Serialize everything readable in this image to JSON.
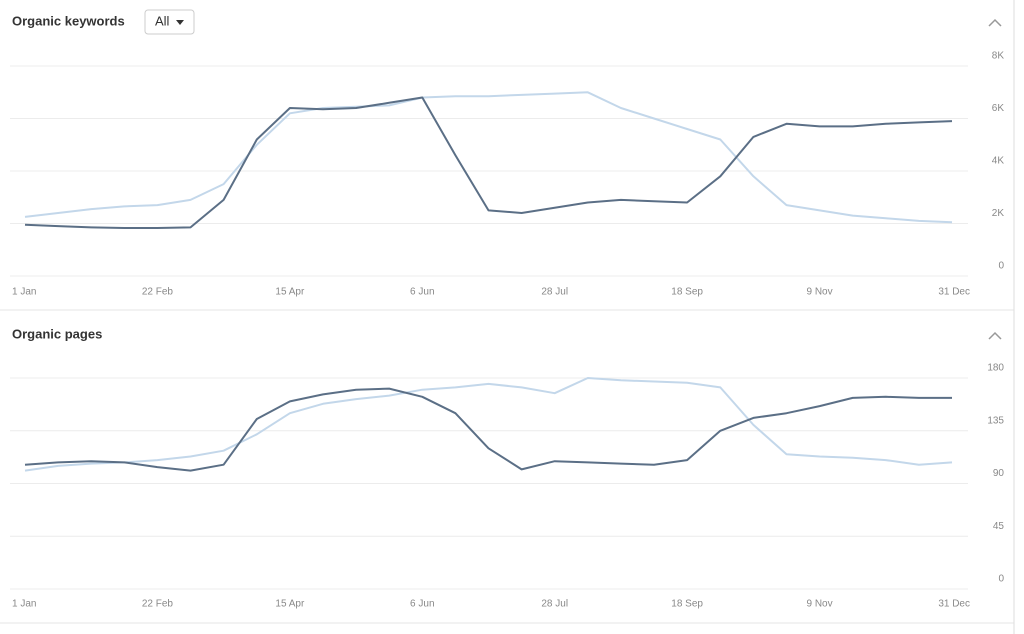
{
  "filter": "All",
  "chart_data": [
    {
      "type": "line",
      "title": "Organic keywords",
      "categories": [
        "1 Jan",
        null,
        null,
        null,
        "22 Feb",
        null,
        null,
        null,
        "15 Apr",
        null,
        null,
        null,
        "6 Jun",
        null,
        null,
        null,
        "28 Jul",
        null,
        null,
        null,
        "18 Sep",
        null,
        null,
        null,
        "9 Nov",
        null,
        null,
        null,
        "31 Dec"
      ],
      "ylim": [
        0,
        8000
      ],
      "yticks": [
        0,
        {
          "value": 2000,
          "label": "2K"
        },
        {
          "value": 4000,
          "label": "4K"
        },
        {
          "value": 6000,
          "label": "6K"
        },
        {
          "value": 8000,
          "label": "8K"
        }
      ],
      "grid": true,
      "series": [
        {
          "color": "#c3d7ea",
          "values": [
            2250,
            2400,
            2550,
            2650,
            2700,
            2900,
            3500,
            5000,
            6200,
            6400,
            6450,
            6500,
            6800,
            6850,
            6850,
            6900,
            6950,
            7000,
            6400,
            6000,
            5600,
            5200,
            3800,
            2700,
            2500,
            2300,
            2200,
            2100,
            2050
          ]
        },
        {
          "color": "#5b6f86",
          "values": [
            1950,
            1900,
            1850,
            1830,
            1830,
            1850,
            2900,
            5200,
            6400,
            6350,
            6400,
            6600,
            6800,
            4600,
            2500,
            2400,
            2600,
            2800,
            2900,
            2850,
            2800,
            3800,
            5300,
            5800,
            5700,
            5700,
            5800,
            5850,
            5900
          ]
        }
      ]
    },
    {
      "type": "line",
      "title": "Organic pages",
      "categories": [
        "1 Jan",
        null,
        null,
        null,
        "22 Feb",
        null,
        null,
        null,
        "15 Apr",
        null,
        null,
        null,
        "6 Jun",
        null,
        null,
        null,
        "28 Jul",
        null,
        null,
        null,
        "18 Sep",
        null,
        null,
        null,
        "9 Nov",
        null,
        null,
        null,
        "31 Dec"
      ],
      "ylim": [
        0,
        180
      ],
      "yticks": [
        0,
        45,
        90,
        135,
        180
      ],
      "grid": true,
      "series": [
        {
          "color": "#c3d7ea",
          "values": [
            101,
            105,
            107,
            108,
            110,
            113,
            118,
            132,
            150,
            158,
            162,
            165,
            170,
            172,
            175,
            172,
            167,
            180,
            178,
            177,
            176,
            172,
            140,
            115,
            113,
            112,
            110,
            106,
            108
          ]
        },
        {
          "color": "#5b6f86",
          "values": [
            106,
            108,
            109,
            108,
            104,
            101,
            106,
            145,
            160,
            166,
            170,
            171,
            164,
            150,
            120,
            102,
            109,
            108,
            107,
            106,
            110,
            135,
            146,
            150,
            156,
            163,
            164,
            163,
            163
          ]
        }
      ]
    }
  ]
}
